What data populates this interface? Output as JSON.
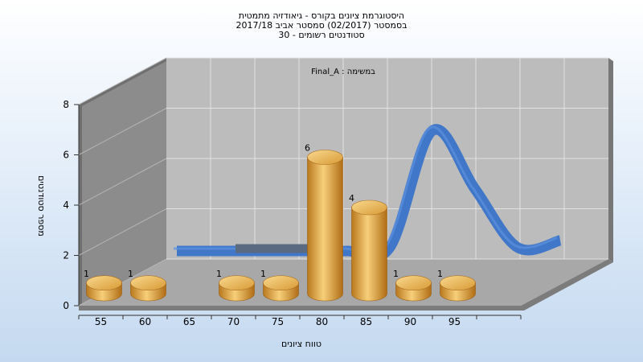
{
  "chart_data": {
    "type": "bar",
    "title_lines": [
      "היסטוגרמת ציונים בקורס - גיאודזיה מתמטית",
      "בסמסטר  (02/2017)  סמסטר אביב 2017/18",
      "סטודנטים רשומים - 30"
    ],
    "annotation": "Final_A : במשימה",
    "xlabel": "טווח ציונים",
    "ylabel": "מספר סטודנטים",
    "categories": [
      "55",
      "60",
      "65",
      "70",
      "75",
      "80",
      "85",
      "90",
      "95"
    ],
    "values": [
      1,
      1,
      0,
      1,
      1,
      6,
      4,
      1,
      1
    ],
    "y_ticks": [
      "0",
      "2",
      "4",
      "6",
      "8"
    ],
    "ylim": [
      0,
      8
    ],
    "curve": [
      0,
      0,
      0,
      0,
      0,
      0.2,
      6.8,
      3.5,
      0.2,
      0.6
    ],
    "grid": true,
    "colors": {
      "bar": "#e0a23a",
      "curve": "#3a73c8",
      "curve_flat": "#5a6a80"
    }
  }
}
